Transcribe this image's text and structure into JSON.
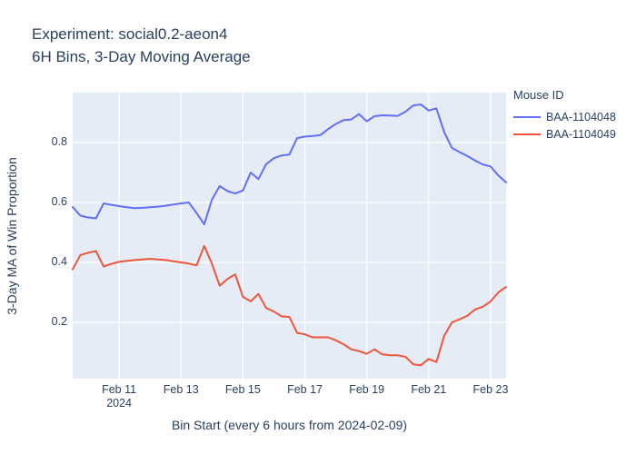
{
  "figure": {
    "title_line1": "Experiment: social0.2-aeon4",
    "title_line2": "6H Bins, 3-Day Moving Average"
  },
  "colors": {
    "text": "#2a3f5f",
    "plot_background": "#e5ecf6",
    "gridline": "#ffffff",
    "series_blue": "#636efa",
    "series_red": "#ef553b",
    "outer_background": "#ffffff"
  },
  "chart_data": {
    "type": "line",
    "title": "Experiment: social0.2-aeon4 — 6H Bins, 3-Day Moving Average",
    "xlabel": "Bin Start (every 6 hours from 2024-02-09)",
    "ylabel": "3-Day MA of Win Proportion",
    "x_bin_interval_hours": 6,
    "n_points": 57,
    "x_ticks": [
      {
        "index": 6,
        "label": "Feb 11",
        "sub": "2024"
      },
      {
        "index": 14,
        "label": "Feb 13",
        "sub": ""
      },
      {
        "index": 22,
        "label": "Feb 15",
        "sub": ""
      },
      {
        "index": 30,
        "label": "Feb 17",
        "sub": ""
      },
      {
        "index": 38,
        "label": "Feb 19",
        "sub": ""
      },
      {
        "index": 46,
        "label": "Feb 21",
        "sub": ""
      },
      {
        "index": 54,
        "label": "Feb 23",
        "sub": ""
      }
    ],
    "y_ticks": [
      {
        "value": 0.2,
        "label": "0.2"
      },
      {
        "value": 0.4,
        "label": "0.4"
      },
      {
        "value": 0.6,
        "label": "0.6"
      },
      {
        "value": 0.8,
        "label": "0.8"
      }
    ],
    "ylim": [
      0.012,
      0.967
    ],
    "grid": true,
    "legend": {
      "title": "Mouse ID",
      "position": "right"
    },
    "series": [
      {
        "name": "BAA-1104048",
        "color": "#636efa",
        "values": [
          0.585,
          0.556,
          0.55,
          0.547,
          0.597,
          0.592,
          0.588,
          0.584,
          0.581,
          0.582,
          0.584,
          0.586,
          0.589,
          0.593,
          0.597,
          0.6,
          0.565,
          0.527,
          0.61,
          0.655,
          0.638,
          0.63,
          0.64,
          0.7,
          0.678,
          0.728,
          0.748,
          0.757,
          0.76,
          0.815,
          0.82,
          0.822,
          0.825,
          0.845,
          0.862,
          0.875,
          0.877,
          0.895,
          0.871,
          0.888,
          0.891,
          0.89,
          0.889,
          0.903,
          0.924,
          0.927,
          0.907,
          0.914,
          0.835,
          0.782,
          0.768,
          0.755,
          0.74,
          0.727,
          0.72,
          0.69,
          0.667
        ]
      },
      {
        "name": "BAA-1104049",
        "color": "#ef553b",
        "values": [
          0.377,
          0.425,
          0.432,
          0.438,
          0.386,
          0.395,
          0.402,
          0.405,
          0.408,
          0.41,
          0.412,
          0.41,
          0.408,
          0.404,
          0.4,
          0.396,
          0.39,
          0.455,
          0.395,
          0.322,
          0.345,
          0.36,
          0.285,
          0.27,
          0.295,
          0.248,
          0.236,
          0.22,
          0.218,
          0.165,
          0.16,
          0.15,
          0.15,
          0.15,
          0.14,
          0.127,
          0.11,
          0.104,
          0.095,
          0.11,
          0.093,
          0.09,
          0.09,
          0.085,
          0.06,
          0.057,
          0.078,
          0.068,
          0.155,
          0.2,
          0.21,
          0.222,
          0.243,
          0.252,
          0.27,
          0.3,
          0.318
        ]
      }
    ]
  }
}
